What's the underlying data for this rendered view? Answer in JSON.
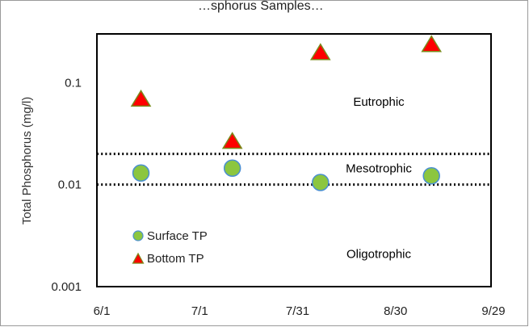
{
  "chart_data": {
    "type": "scatter",
    "title_fragment": "…sphorus Samples…",
    "ylabel": "Total Phosphorus (mg/l)",
    "xlabel": "",
    "y_scale": "log",
    "ylim": [
      0.001,
      0.3
    ],
    "y_ticks": [
      "0.001",
      "0.01",
      "0.1"
    ],
    "x_ticks": [
      "6/1",
      "7/1",
      "7/31",
      "8/30",
      "9/29"
    ],
    "xlim": [
      "6/1",
      "9/29"
    ],
    "series": [
      {
        "name": "Surface TP",
        "marker": "circle",
        "color": "#8cc63f",
        "edge_color": "#4a8fd1",
        "points": [
          {
            "x": "6/13",
            "y": 0.013
          },
          {
            "x": "7/11",
            "y": 0.0145
          },
          {
            "x": "8/7",
            "y": 0.0105
          },
          {
            "x": "9/10",
            "y": 0.0122
          }
        ]
      },
      {
        "name": "Bottom TP",
        "marker": "triangle",
        "color": "#ff0000",
        "edge_color": "#7a8a1a",
        "points": [
          {
            "x": "6/13",
            "y": 0.07
          },
          {
            "x": "7/11",
            "y": 0.027
          },
          {
            "x": "8/7",
            "y": 0.2
          },
          {
            "x": "9/10",
            "y": 0.24
          }
        ]
      }
    ],
    "thresholds": [
      {
        "y": 0.02,
        "style": "dotted"
      },
      {
        "y": 0.01,
        "style": "dotted"
      }
    ],
    "zones": [
      {
        "label": "Eutrophic",
        "y": 0.065
      },
      {
        "label": "Mesotrophic",
        "y": 0.0145
      },
      {
        "label": "Oligotrophic",
        "y": 0.0021
      }
    ],
    "legend_position": "bottom-left"
  }
}
